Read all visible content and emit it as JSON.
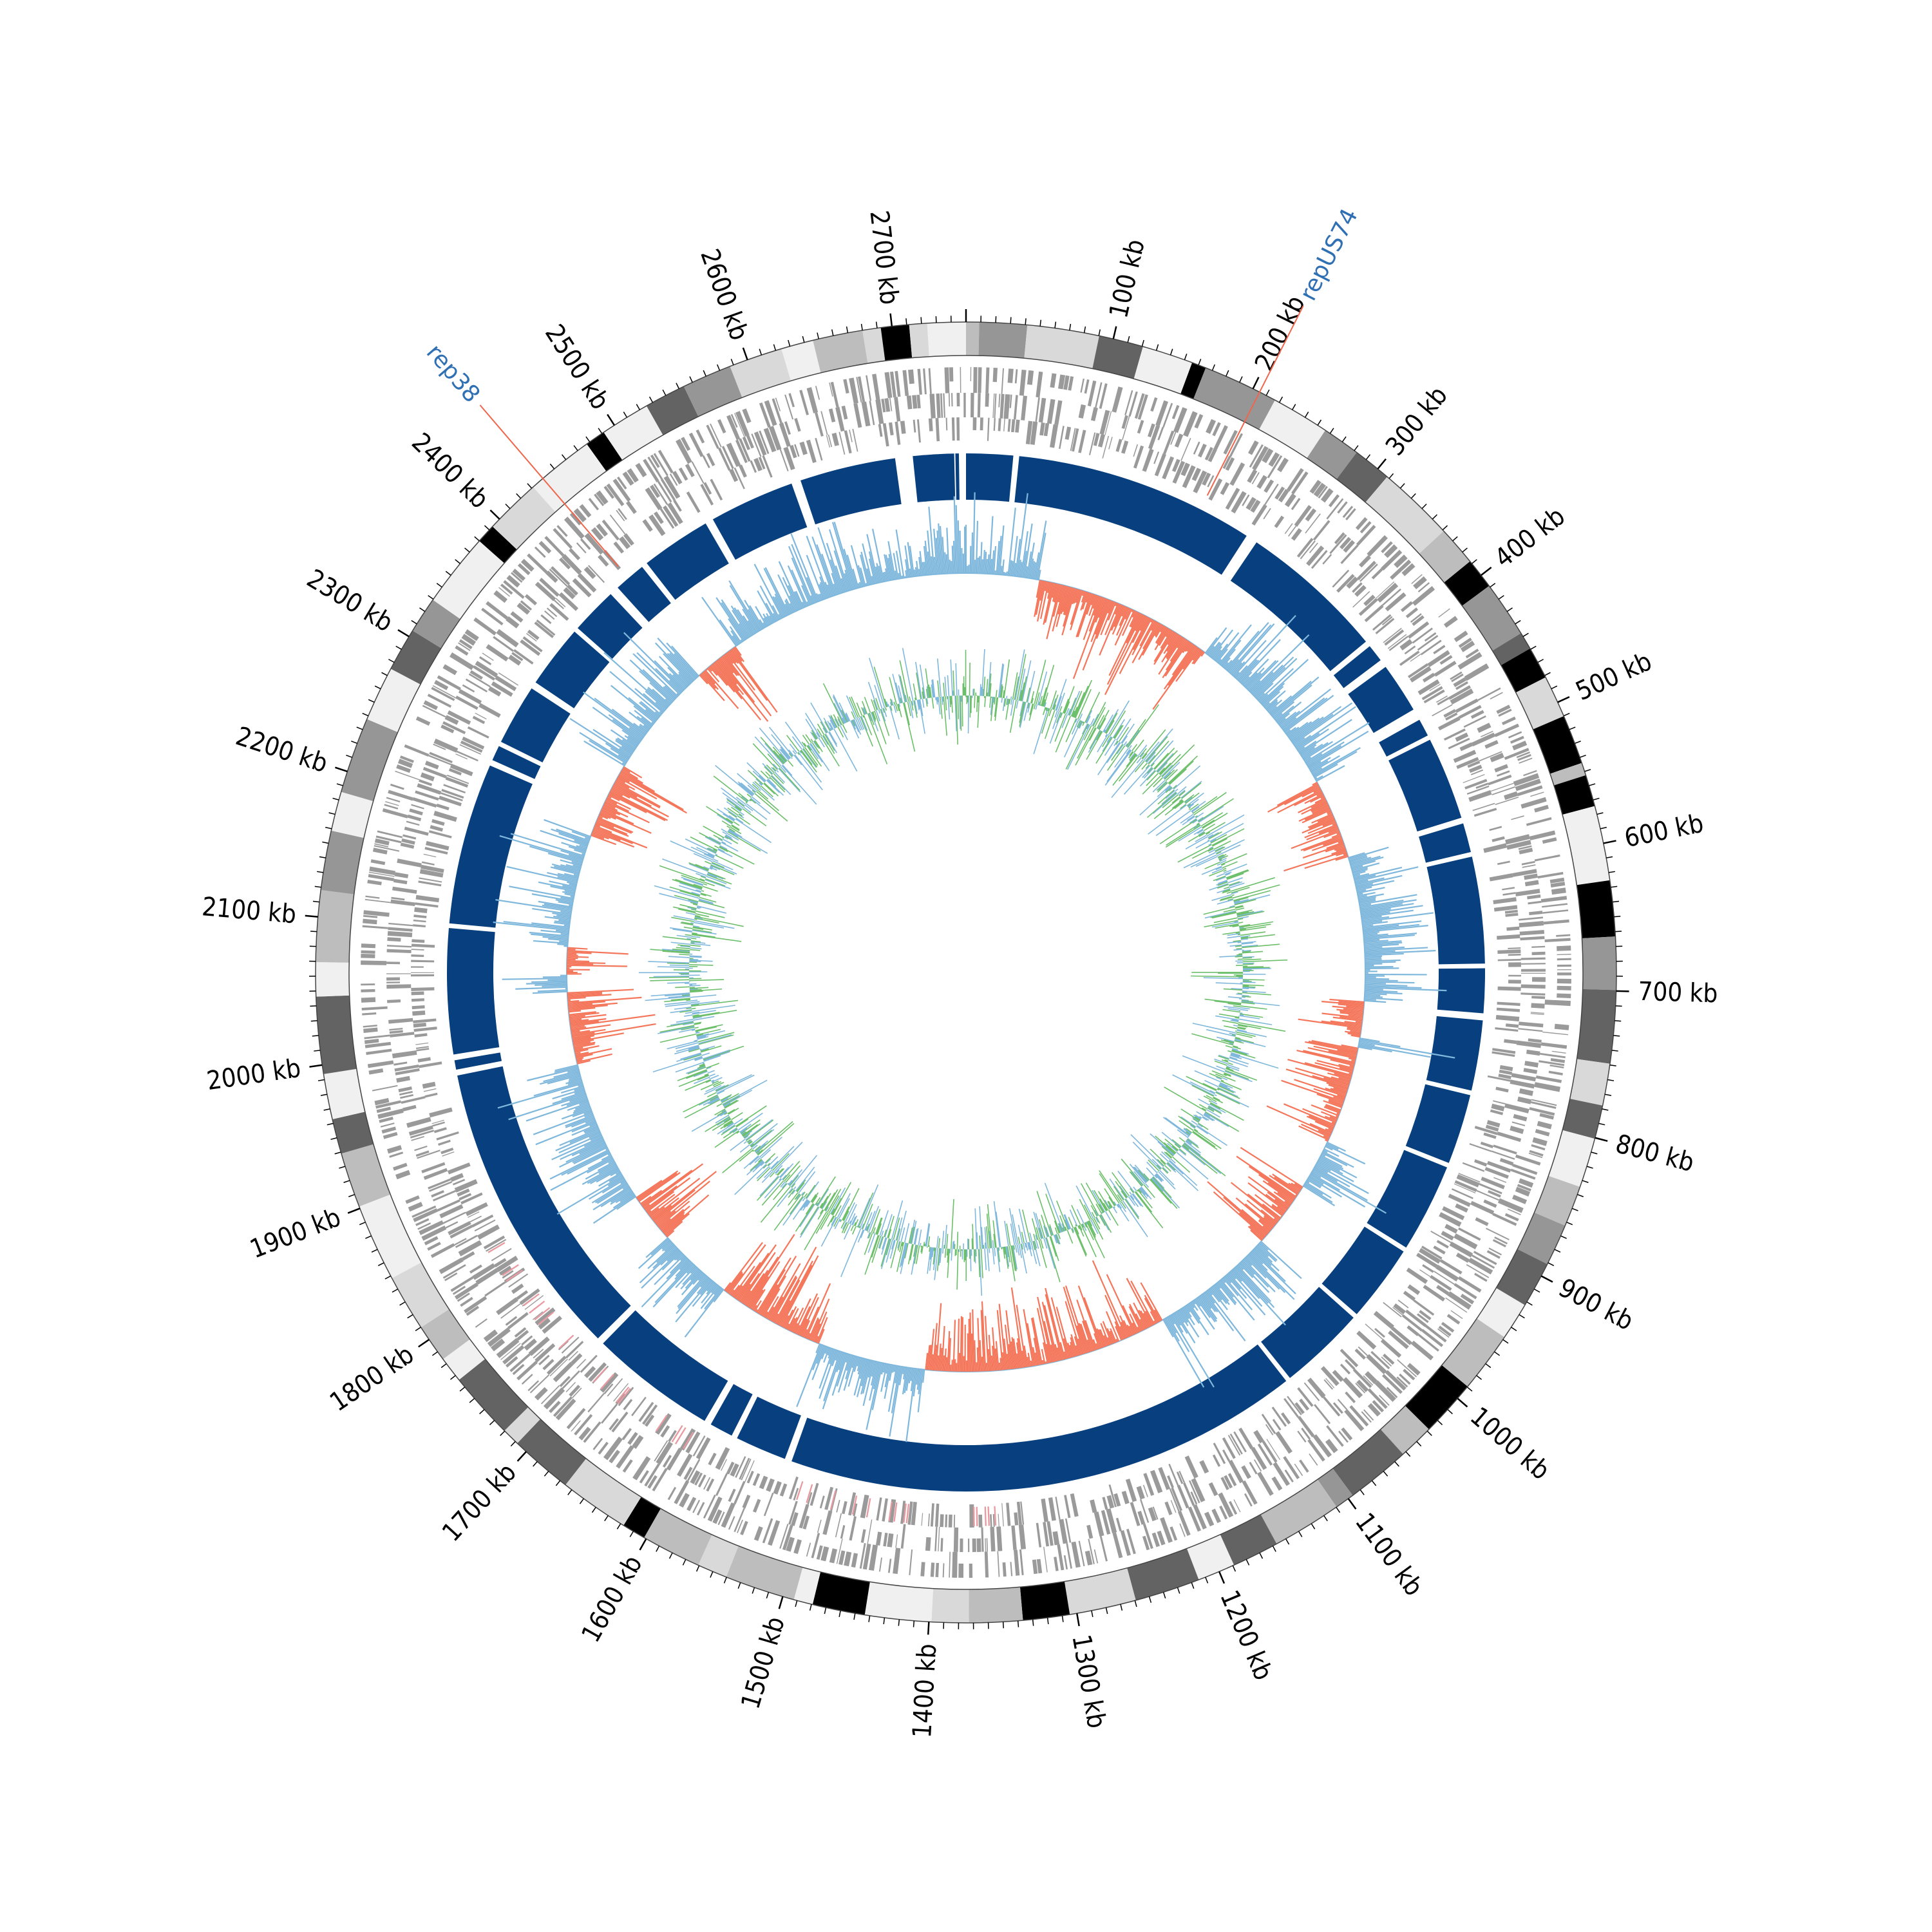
{
  "genome": {
    "length_kb": 2750,
    "tick_labels": [
      "100 kb",
      "200 kb",
      "300 kb",
      "400 kb",
      "500 kb",
      "600 kb",
      "700 kb",
      "800 kb",
      "900 kb",
      "1000 kb",
      "1100 kb",
      "1200 kb",
      "1300 kb",
      "1400 kb",
      "1500 kb",
      "1600 kb",
      "1700 kb",
      "1800 kb",
      "1900 kb",
      "2000 kb",
      "2100 kb",
      "2200 kb",
      "2300 kb",
      "2400 kb",
      "2500 kb",
      "2600 kb",
      "2700 kb"
    ]
  },
  "annotations": [
    {
      "label": "repUS74",
      "position_kb": 205
    },
    {
      "label": "rep38",
      "position_kb": 2440
    }
  ],
  "colors": {
    "dark_blue": "#08407f",
    "light_blue": "#7fb8dc",
    "salmon": "#f4765b",
    "green": "#6cbf6a",
    "gray_feature": "#9a9a9a",
    "annotation_text": "#2f6fb3",
    "annotation_line": "#f0664d"
  },
  "tracks": {
    "outer_band_shades": [
      "#f0f0f0",
      "#bdbdbd",
      "#636363",
      "#000000",
      "#969696",
      "#d9d9d9"
    ]
  }
}
